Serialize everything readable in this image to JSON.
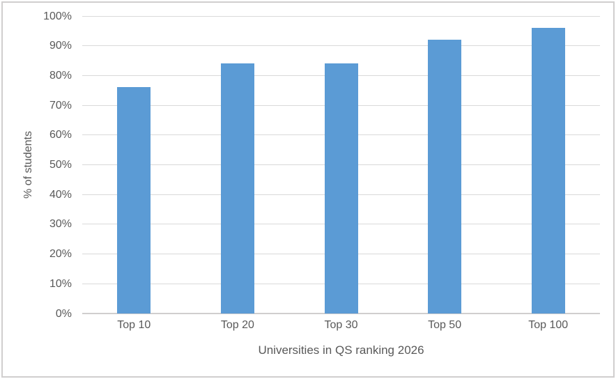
{
  "chart_data": {
    "type": "bar",
    "title": "",
    "categories": [
      "Top 10",
      "Top 20",
      "Top 30",
      "Top 50",
      "Top 100"
    ],
    "values": [
      76,
      84,
      84,
      92,
      96
    ],
    "xlabel": "Universities in QS ranking 2026",
    "ylabel": "% of students",
    "ylim": [
      0,
      100
    ],
    "ytick_step": 10,
    "ytick_suffix": "%",
    "ytick_labels": [
      "0%",
      "10%",
      "20%",
      "30%",
      "40%",
      "50%",
      "60%",
      "70%",
      "80%",
      "90%",
      "100%"
    ],
    "grid": true,
    "legend": false,
    "colors": {
      "bar": "#5B9BD5",
      "gridline": "#D9D9D9",
      "axis_line": "#D0CECE",
      "text": "#595959",
      "frame_border": "#D0CECE",
      "background": "#FFFFFF"
    }
  }
}
